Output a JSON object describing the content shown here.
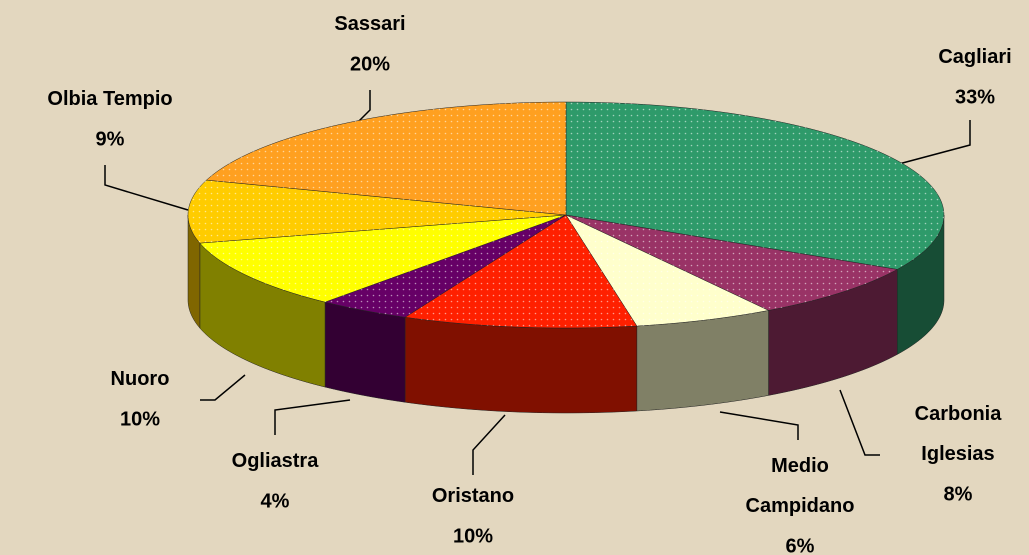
{
  "chart_data": {
    "type": "pie3d",
    "categories": [
      "Cagliari",
      "Carbonia Iglesias",
      "Medio Campidano",
      "Oristano",
      "Ogliastra",
      "Nuoro",
      "Olbia Tempio",
      "Sassari"
    ],
    "values": [
      33,
      8,
      6,
      10,
      4,
      10,
      9,
      20
    ],
    "value_labels": [
      "33%",
      "8%",
      "6%",
      "10%",
      "4%",
      "10%",
      "9%",
      "20%"
    ],
    "colors": [
      "#2e9a6a",
      "#993366",
      "#ffffcc",
      "#ff2000",
      "#660066",
      "#ffff00",
      "#ffcc00",
      "#ffa020"
    ]
  }
}
